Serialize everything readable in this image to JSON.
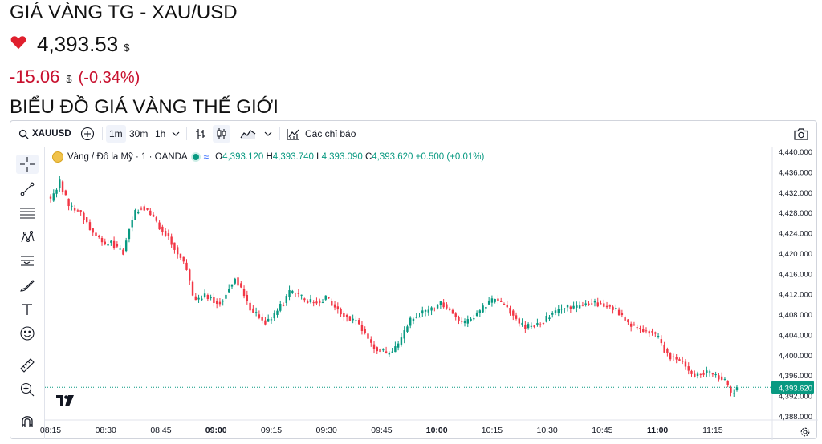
{
  "header": {
    "title": "GIÁ VÀNG TG - XAU/USD",
    "price": "4,393.53",
    "currency": "$",
    "change": "-15.06",
    "change_currency": "$",
    "change_pct": "(-0.34%)",
    "section_title": "BIỂU ĐỒ GIÁ VÀNG THẾ GIỚI",
    "down_color": "#c8102e"
  },
  "toolbar": {
    "symbol": "XAUUSD",
    "intervals": [
      "1m",
      "30m",
      "1h"
    ],
    "active_interval": "1m",
    "indicators_label": "Các chỉ báo",
    "icons": [
      "add-symbol-icon",
      "chevron-down-icon",
      "bar-chart-icon",
      "candlestick-icon",
      "area-chart-icon",
      "indicators-icon",
      "camera-icon"
    ]
  },
  "tools": [
    "crosshair-icon",
    "trendline-icon",
    "fib-icon",
    "pattern-icon",
    "forecast-icon",
    "brush-icon",
    "text-icon",
    "emoji-icon",
    "ruler-icon",
    "zoom-icon",
    "magnet-icon"
  ],
  "legend": {
    "name": "Vàng / Đô la Mỹ · 1 · OANDA",
    "o_label": "O",
    "o": "4,393.120",
    "h_label": "H",
    "h": "4,393.740",
    "l_label": "L",
    "l": "4,393.090",
    "c_label": "C",
    "c": "4,393.620",
    "change": "+0.500 (+0.01%)"
  },
  "chart_data": {
    "type": "candlestick",
    "xlabels": [
      "08:15",
      "08:30",
      "08:45",
      "09:00",
      "09:15",
      "09:30",
      "09:45",
      "10:00",
      "10:15",
      "10:30",
      "10:45",
      "11:00",
      "11:15"
    ],
    "bold_xlabels": [
      "09:00",
      "10:00",
      "11:00"
    ],
    "ylabels": [
      "4,440.000",
      "4,436.000",
      "4,432.000",
      "4,428.000",
      "4,424.000",
      "4,420.000",
      "4,416.000",
      "4,412.000",
      "4,408.000",
      "4,404.000",
      "4,400.000",
      "4,396.000",
      "4,392.000",
      "4,388.000"
    ],
    "ylim": [
      4387.2,
      4440.8
    ],
    "last_price": 4393.62,
    "last_price_label": "4,393.620",
    "up_color": "#089981",
    "down_color": "#f23645",
    "close_path": [
      [
        0,
        4430.5
      ],
      [
        3,
        4434.2
      ],
      [
        6,
        4429.3
      ],
      [
        8,
        4428.5
      ],
      [
        10,
        4428.0
      ],
      [
        12,
        4426.0
      ],
      [
        14,
        4424.0
      ],
      [
        16,
        4422.8
      ],
      [
        18,
        4421.5
      ],
      [
        20,
        4422.2
      ],
      [
        22,
        4421.0
      ],
      [
        24,
        4420.2
      ],
      [
        26,
        4425.0
      ],
      [
        28,
        4428.0
      ],
      [
        30,
        4429.2
      ],
      [
        32,
        4428.4
      ],
      [
        34,
        4427.0
      ],
      [
        36,
        4425.2
      ],
      [
        38,
        4424.0
      ],
      [
        40,
        4422.0
      ],
      [
        43,
        4419.0
      ],
      [
        45,
        4417.0
      ],
      [
        47,
        4411.5
      ],
      [
        49,
        4410.8
      ],
      [
        51,
        4411.6
      ],
      [
        53,
        4411.2
      ],
      [
        55,
        4410.2
      ],
      [
        57,
        4410.9
      ],
      [
        59,
        4413.3
      ],
      [
        61,
        4415.1
      ],
      [
        63,
        4413.2
      ],
      [
        65,
        4410.0
      ],
      [
        67,
        4408.6
      ],
      [
        69,
        4407.6
      ],
      [
        71,
        4406.4
      ],
      [
        73,
        4407.2
      ],
      [
        75,
        4408.8
      ],
      [
        77,
        4410.3
      ],
      [
        79,
        4412.3
      ],
      [
        81,
        4412.0
      ],
      [
        83,
        4411.3
      ],
      [
        85,
        4410.4
      ],
      [
        87,
        4410.7
      ],
      [
        89,
        4410.4
      ],
      [
        91,
        4411.2
      ],
      [
        93,
        4410.0
      ],
      [
        95,
        4409.0
      ],
      [
        97,
        4408.0
      ],
      [
        99,
        4407.0
      ],
      [
        101,
        4406.7
      ],
      [
        103,
        4405.2
      ],
      [
        105,
        4403.0
      ],
      [
        107,
        4401.4
      ],
      [
        109,
        4400.9
      ],
      [
        111,
        4400.2
      ],
      [
        113,
        4400.6
      ],
      [
        115,
        4401.8
      ],
      [
        117,
        4404.7
      ],
      [
        119,
        4406.8
      ],
      [
        121,
        4407.6
      ],
      [
        123,
        4408.3
      ],
      [
        125,
        4408.6
      ],
      [
        127,
        4409.4
      ],
      [
        129,
        4410.2
      ],
      [
        131,
        4409.4
      ],
      [
        133,
        4408.2
      ],
      [
        135,
        4406.5
      ],
      [
        137,
        4406.2
      ],
      [
        139,
        4407.1
      ],
      [
        141,
        4408.0
      ],
      [
        143,
        4409.2
      ],
      [
        145,
        4410.4
      ],
      [
        147,
        4410.9
      ],
      [
        149,
        4410.2
      ],
      [
        151,
        4409.3
      ],
      [
        153,
        4407.9
      ],
      [
        155,
        4406.1
      ],
      [
        157,
        4405.4
      ],
      [
        159,
        4405.8
      ],
      [
        161,
        4405.9
      ],
      [
        163,
        4406.7
      ],
      [
        165,
        4407.8
      ],
      [
        167,
        4408.4
      ],
      [
        169,
        4409.2
      ],
      [
        171,
        4409.6
      ],
      [
        173,
        4409.2
      ],
      [
        175,
        4409.6
      ],
      [
        177,
        4410.0
      ],
      [
        179,
        4410.2
      ],
      [
        181,
        4410.1
      ],
      [
        183,
        4409.8
      ],
      [
        185,
        4409.4
      ],
      [
        187,
        4408.8
      ],
      [
        189,
        4407.6
      ],
      [
        191,
        4406.0
      ],
      [
        193,
        4405.6
      ],
      [
        195,
        4405.1
      ],
      [
        197,
        4404.7
      ],
      [
        199,
        4404.3
      ],
      [
        201,
        4403.2
      ],
      [
        203,
        4401.0
      ],
      [
        205,
        4399.6
      ],
      [
        207,
        4399.2
      ],
      [
        209,
        4398.6
      ],
      [
        211,
        4397.0
      ],
      [
        213,
        4396.0
      ],
      [
        215,
        4396.2
      ],
      [
        217,
        4396.5
      ],
      [
        219,
        4396.2
      ],
      [
        221,
        4395.6
      ],
      [
        223,
        4394.8
      ],
      [
        225,
        4392.3
      ],
      [
        227,
        4393.62
      ]
    ]
  }
}
